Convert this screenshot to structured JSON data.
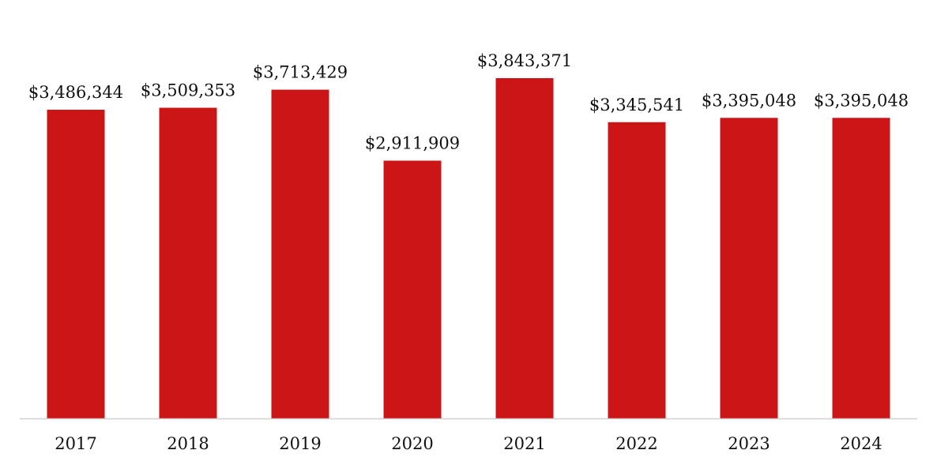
{
  "chart_data": {
    "type": "bar",
    "categories": [
      "2017",
      "2018",
      "2019",
      "2020",
      "2021",
      "2022",
      "2023",
      "2024"
    ],
    "values": [
      3486344,
      3509353,
      3713429,
      2911909,
      3843371,
      3345541,
      3395048,
      3395048
    ],
    "data_labels": [
      "$3,486,344",
      "$3,509,353",
      "$3,713,429",
      "$2,911,909",
      "$3,843,371",
      "$3,345,541",
      "$3,395,048",
      "$3,395,048"
    ],
    "title": "",
    "xlabel": "",
    "ylabel": "",
    "ylim": [
      0,
      4300000
    ],
    "grid": false,
    "legend": "none",
    "bar_color": "#cc1517",
    "axis_color": "#d0d0d0"
  }
}
